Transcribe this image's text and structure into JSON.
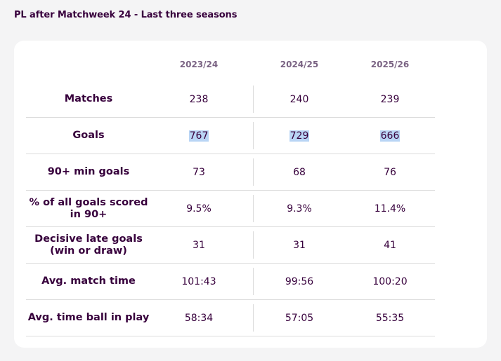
{
  "title": "PL after Matchweek 24 - Last three seasons",
  "columns": [
    "2023/24",
    "2024/25",
    "2025/26"
  ],
  "rows": [
    {
      "label": "Matches",
      "values": [
        "238",
        "240",
        "239"
      ]
    },
    {
      "label": "Goals",
      "values": [
        "767",
        "729",
        "666"
      ],
      "selected": true
    },
    {
      "label": "90+ min goals",
      "values": [
        "73",
        "68",
        "76"
      ]
    },
    {
      "label": "% of all goals scored in 90+",
      "values": [
        "9.5%",
        "9.3%",
        "11.4%"
      ]
    },
    {
      "label": "Decisive late goals (win or draw)",
      "values": [
        "31",
        "31",
        "41"
      ]
    },
    {
      "label": "Avg. match time",
      "values": [
        "101:43",
        "99:56",
        "100:20"
      ]
    },
    {
      "label": "Avg. time ball in play",
      "values": [
        "58:34",
        "57:05",
        "55:35"
      ]
    }
  ],
  "colors": {
    "text": "#37003c",
    "header": "#7a6383",
    "selection": "#b9d5f5",
    "background": "#f4f4f5",
    "card": "#ffffff"
  }
}
